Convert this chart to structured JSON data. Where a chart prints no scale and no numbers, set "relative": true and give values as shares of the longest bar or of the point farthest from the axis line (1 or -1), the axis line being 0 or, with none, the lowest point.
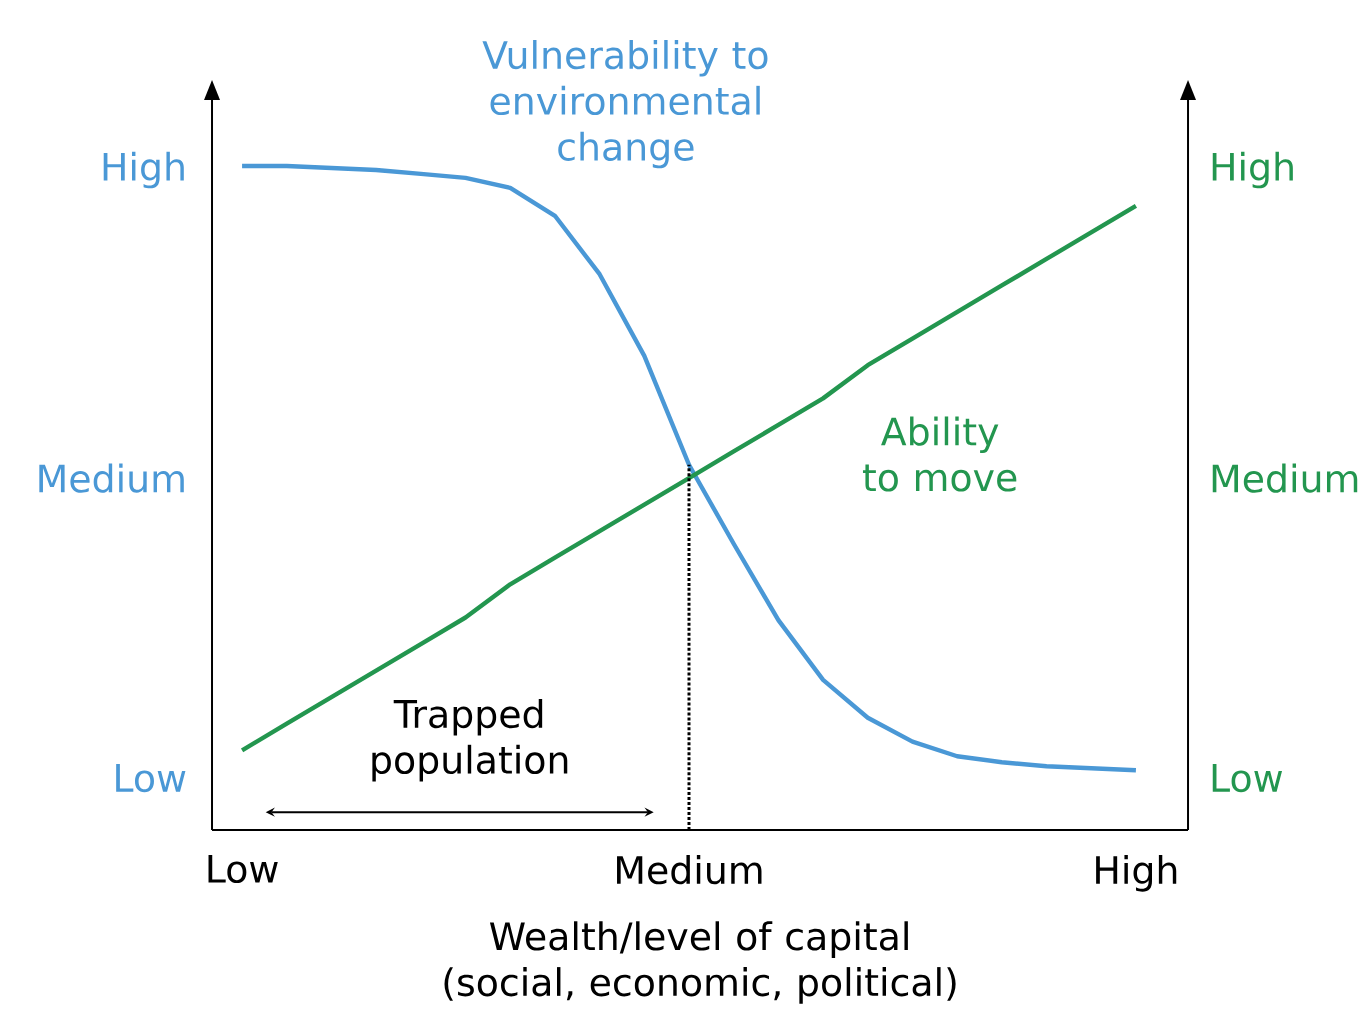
{
  "chart_data": {
    "type": "line",
    "relative": true,
    "xlabel": "Wealth/level of capital (social, economic, political)",
    "marker": "none",
    "grid": false,
    "legend": false,
    "categories": [
      "Low",
      null,
      null,
      null,
      null,
      null,
      null,
      null,
      null,
      null,
      "Medium",
      null,
      null,
      null,
      null,
      null,
      null,
      null,
      null,
      null,
      "High"
    ],
    "series": [
      {
        "name": "Vulnerability to environmental change",
        "color": "#4a98d6",
        "values": [
          1.0,
          1.0,
          0.997,
          0.994,
          0.988,
          0.982,
          0.967,
          0.925,
          0.837,
          0.714,
          0.55,
          0.431,
          0.316,
          0.226,
          0.169,
          0.133,
          0.111,
          0.102,
          0.096,
          0.093,
          0.09
        ]
      },
      {
        "name": "Ability to move",
        "color": "#23964f",
        "values": [
          0.12,
          0.16,
          0.2,
          0.24,
          0.28,
          0.32,
          0.37,
          0.41,
          0.45,
          0.49,
          0.53,
          0.57,
          0.61,
          0.65,
          0.7,
          0.74,
          0.78,
          0.82,
          0.86,
          0.9,
          0.94
        ]
      }
    ],
    "ref_lines": [
      {
        "axis": "x",
        "value": "Medium",
        "color": "#000000",
        "line_style": "dotted"
      }
    ],
    "annotations": [
      "High",
      "Medium",
      "Low",
      "High",
      "Medium",
      "Low",
      "Trapped population"
    ]
  }
}
